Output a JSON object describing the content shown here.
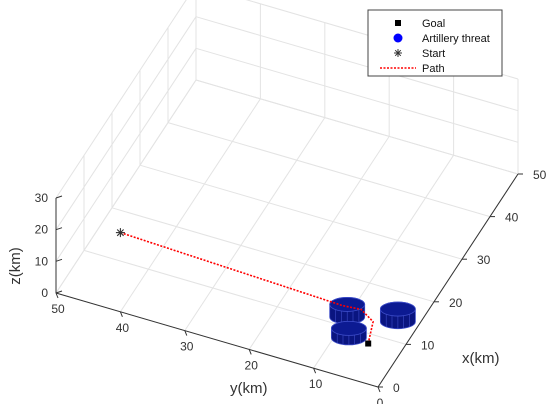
{
  "chart_data": {
    "type": "line3d",
    "xlabel": "x(km)",
    "ylabel": "y(km)",
    "zlabel": "z(km)",
    "xlim": [
      0,
      50
    ],
    "ylim": [
      0,
      50
    ],
    "zlim": [
      0,
      30
    ],
    "x_ticks": [
      "0",
      "10",
      "20",
      "30",
      "40",
      "50"
    ],
    "y_ticks": [
      "0",
      "10",
      "20",
      "30",
      "40",
      "50"
    ],
    "z_ticks": [
      "0",
      "10",
      "20",
      "30"
    ],
    "grid": true,
    "legend_position": "top-right",
    "legend": [
      {
        "label": "Goal",
        "marker": "square",
        "color": "#000000"
      },
      {
        "label": "Artillery threat",
        "marker": "circle",
        "color": "#0000ff"
      },
      {
        "label": "Start",
        "marker": "asterisk",
        "color": "#333333"
      },
      {
        "label": "Path",
        "marker": "dotted-line",
        "color": "#ff0000"
      }
    ],
    "start": {
      "x": 0,
      "y": 40,
      "z": 25
    },
    "goal": {
      "x": 8,
      "y": 5,
      "z": 0
    },
    "threats": [
      {
        "x": 12,
        "y": 10,
        "radius": 2.5,
        "height": 4
      },
      {
        "x": 8,
        "y": 8,
        "radius": 2.5,
        "height": 3
      },
      {
        "x": 14,
        "y": 3,
        "radius": 2.5,
        "height": 4
      }
    ],
    "path": {
      "color": "#ff0000",
      "points": [
        {
          "x": 0,
          "y": 40,
          "z": 25
        },
        {
          "x": 11.5,
          "y": 10.5,
          "z": 4
        },
        {
          "x": 11.2,
          "y": 7.5,
          "z": 5
        },
        {
          "x": 10.2,
          "y": 5.2,
          "z": 3.8
        },
        {
          "x": 8,
          "y": 5,
          "z": 0
        }
      ]
    },
    "colors": {
      "threat_fill": "#0a1580",
      "threat_edge": "#3c4cc8",
      "path": "#ff0000",
      "grid": "#e3e3e3",
      "axis": "#333333"
    }
  }
}
